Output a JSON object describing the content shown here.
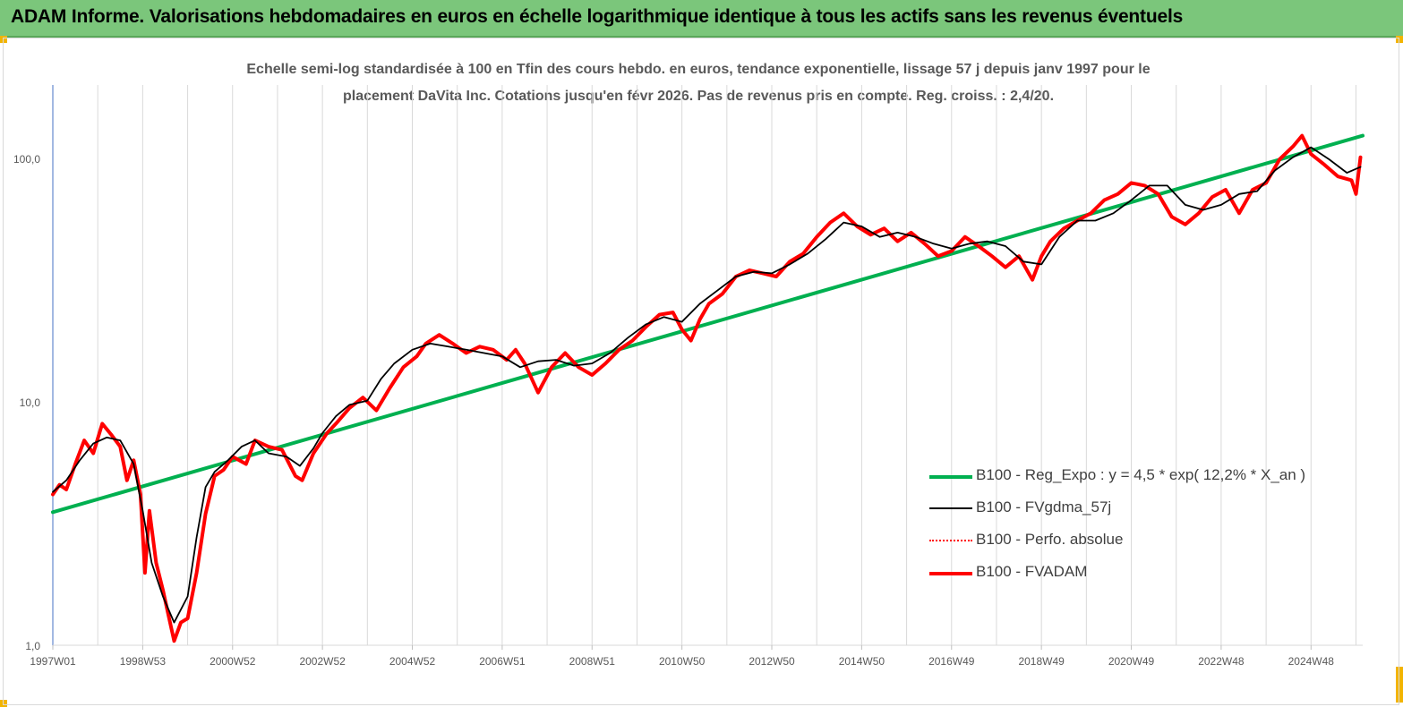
{
  "header": {
    "title": "ADAM Informe. Valorisations hebdomadaires en euros en échelle logarithmique identique à tous les actifs sans les revenus éventuels"
  },
  "chart_data": {
    "type": "line",
    "title_line1": "Echelle semi-log standardisée à 100 en Tfin des cours hebdo. en euros, tendance exponentielle, lissage 57 j depuis janv 1997 pour le",
    "title_line2": "placement DaVita Inc. Cotations jusqu'en févr 2026. Pas de revenus pris en compte. Reg. croiss. : 2,4/20.",
    "y_scale": "log",
    "ylim": [
      1,
      200
    ],
    "y_ticks": [
      1,
      10,
      100
    ],
    "y_tick_labels": [
      "1,0",
      "10,0",
      "100,0"
    ],
    "xlim": [
      1997.0,
      2026.15
    ],
    "x_ticks": [
      1997.0,
      1999.0,
      2001.0,
      2003.0,
      2005.0,
      2007.0,
      2009.0,
      2011.0,
      2013.0,
      2015.0,
      2017.0,
      2019.0,
      2021.0,
      2023.0,
      2025.0
    ],
    "x_tick_labels": [
      "1997W01",
      "1998W53",
      "2000W52",
      "2002W52",
      "2004W52",
      "2006W51",
      "2008W51",
      "2010W50",
      "2012W50",
      "2014W50",
      "2016W49",
      "2018W49",
      "2020W49",
      "2022W48",
      "2024W48"
    ],
    "grid": "vertical",
    "legend_position": "bottom-right",
    "series": [
      {
        "name": "B100 - Reg_Expo : y = 4,5 * exp( 12,2% *  X_an )",
        "color": "#00b050",
        "style": "solid-thick",
        "x": [
          1997.0,
          2026.15
        ],
        "y": [
          3.55,
          125
        ]
      },
      {
        "name": "B100 - FVgdma_57j",
        "color": "#000000",
        "style": "solid-thin",
        "x": [
          1997.0,
          1997.3,
          1997.6,
          1997.9,
          1998.2,
          1998.5,
          1998.8,
          1999.0,
          1999.2,
          1999.45,
          1999.7,
          2000.0,
          2000.2,
          2000.4,
          2000.6,
          2000.9,
          2001.2,
          2001.5,
          2001.8,
          2002.2,
          2002.5,
          2002.8,
          2003.0,
          2003.3,
          2003.6,
          2004.0,
          2004.3,
          2004.6,
          2005.0,
          2005.4,
          2005.8,
          2006.2,
          2006.6,
          2007.0,
          2007.4,
          2007.8,
          2008.2,
          2008.6,
          2009.0,
          2009.4,
          2009.8,
          2010.2,
          2010.6,
          2011.0,
          2011.4,
          2011.8,
          2012.2,
          2012.6,
          2013.0,
          2013.4,
          2013.8,
          2014.2,
          2014.6,
          2015.0,
          2015.4,
          2015.8,
          2016.2,
          2016.6,
          2017.0,
          2017.4,
          2017.8,
          2018.2,
          2018.6,
          2019.0,
          2019.4,
          2019.8,
          2020.2,
          2020.6,
          2021.0,
          2021.4,
          2021.8,
          2022.2,
          2022.6,
          2023.0,
          2023.4,
          2023.8,
          2024.2,
          2024.6,
          2025.0,
          2025.4,
          2025.8,
          2026.1
        ],
        "y": [
          4.3,
          4.8,
          5.8,
          6.8,
          7.2,
          7.0,
          5.6,
          3.6,
          2.2,
          1.6,
          1.25,
          1.6,
          2.8,
          4.5,
          5.2,
          5.8,
          6.6,
          7.0,
          6.2,
          6.0,
          5.5,
          6.5,
          7.5,
          8.8,
          9.8,
          10.2,
          12.5,
          14.5,
          16.5,
          17.5,
          17.0,
          16.5,
          16.0,
          15.5,
          14.0,
          14.8,
          15.0,
          14.2,
          14.5,
          16.0,
          18.5,
          21.0,
          22.5,
          21.5,
          25.5,
          29.0,
          33.0,
          34.5,
          34.0,
          37.0,
          41.0,
          47.0,
          55.0,
          53.0,
          48.0,
          50.0,
          48.0,
          45.0,
          43.0,
          45.0,
          46.0,
          44.0,
          38.0,
          37.0,
          48.0,
          56.0,
          56.0,
          60.0,
          68.0,
          78.0,
          78.0,
          65.0,
          62.0,
          65.0,
          72.0,
          74.0,
          90.0,
          102.0,
          112.0,
          100.0,
          88.0,
          93.0
        ]
      },
      {
        "name": "B100 - Perfo. absolue",
        "color": "#ff0000",
        "style": "dotted",
        "x": [],
        "y": []
      },
      {
        "name": "B100 - FVADAM",
        "color": "#ff0000",
        "style": "solid-thick",
        "x": [
          1997.0,
          1997.15,
          1997.3,
          1997.5,
          1997.7,
          1997.9,
          1998.1,
          1998.3,
          1998.5,
          1998.65,
          1998.8,
          1998.95,
          1999.05,
          1999.15,
          1999.3,
          1999.45,
          1999.55,
          1999.7,
          1999.85,
          2000.0,
          2000.2,
          2000.4,
          2000.6,
          2000.8,
          2001.0,
          2001.3,
          2001.5,
          2001.8,
          2002.1,
          2002.4,
          2002.55,
          2002.8,
          2003.1,
          2003.3,
          2003.6,
          2003.9,
          2004.2,
          2004.5,
          2004.8,
          2005.1,
          2005.3,
          2005.6,
          2005.9,
          2006.2,
          2006.5,
          2006.8,
          2007.1,
          2007.3,
          2007.5,
          2007.8,
          2008.1,
          2008.4,
          2008.7,
          2009.0,
          2009.3,
          2009.6,
          2009.9,
          2010.2,
          2010.5,
          2010.8,
          2011.0,
          2011.2,
          2011.4,
          2011.6,
          2011.9,
          2012.2,
          2012.5,
          2012.8,
          2013.1,
          2013.4,
          2013.7,
          2014.0,
          2014.3,
          2014.6,
          2014.9,
          2015.2,
          2015.5,
          2015.8,
          2016.1,
          2016.4,
          2016.7,
          2017.0,
          2017.3,
          2017.6,
          2017.9,
          2018.2,
          2018.5,
          2018.8,
          2019.0,
          2019.2,
          2019.5,
          2019.8,
          2020.1,
          2020.4,
          2020.7,
          2021.0,
          2021.3,
          2021.6,
          2021.9,
          2022.2,
          2022.5,
          2022.8,
          2023.1,
          2023.4,
          2023.7,
          2024.0,
          2024.3,
          2024.6,
          2024.8,
          2025.0,
          2025.3,
          2025.6,
          2025.9,
          2026.0,
          2026.1
        ],
        "y": [
          4.2,
          4.6,
          4.4,
          5.6,
          7.0,
          6.2,
          8.2,
          7.4,
          6.6,
          4.8,
          5.8,
          4.2,
          2.0,
          3.6,
          2.2,
          1.7,
          1.4,
          1.05,
          1.25,
          1.3,
          2.0,
          3.5,
          5.0,
          5.3,
          6.0,
          5.6,
          7.0,
          6.6,
          6.4,
          5.0,
          4.8,
          6.2,
          7.5,
          8.2,
          9.5,
          10.5,
          9.3,
          11.5,
          14.0,
          15.5,
          17.5,
          19.0,
          17.5,
          16.0,
          17.0,
          16.5,
          15.0,
          16.5,
          14.5,
          11.0,
          14.0,
          16.0,
          14.0,
          13.0,
          14.5,
          16.5,
          18.0,
          20.5,
          23.0,
          23.5,
          20.0,
          18.0,
          22.0,
          25.5,
          28.0,
          33.0,
          35.0,
          34.0,
          33.0,
          38.0,
          41.0,
          48.0,
          55.0,
          60.0,
          53.0,
          49.0,
          52.0,
          46.0,
          50.0,
          45.0,
          40.0,
          42.0,
          48.0,
          44.0,
          40.0,
          36.0,
          40.0,
          32.0,
          40.0,
          46.0,
          52.0,
          56.0,
          60.0,
          68.0,
          72.0,
          80.0,
          78.0,
          72.0,
          58.0,
          54.0,
          60.0,
          70.0,
          75.0,
          60.0,
          75.0,
          80.0,
          100.0,
          113.0,
          125.0,
          105.0,
          95.0,
          85.0,
          82.0,
          72.0,
          102.0
        ]
      }
    ]
  }
}
